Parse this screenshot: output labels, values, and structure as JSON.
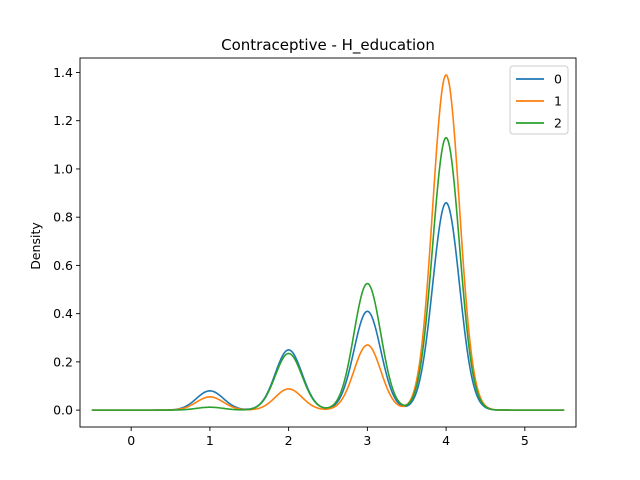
{
  "chart_data": {
    "type": "line",
    "title": "Contraceptive - H_education",
    "xlabel": "",
    "ylabel": "Density",
    "xlim": [
      -0.65,
      5.65
    ],
    "ylim": [
      -0.07,
      1.46
    ],
    "xticks": [
      0,
      1,
      2,
      3,
      4,
      5
    ],
    "yticks": [
      0.0,
      0.2,
      0.4,
      0.6,
      0.8,
      1.0,
      1.2,
      1.4
    ],
    "ytick_labels": [
      "0.0",
      "0.2",
      "0.4",
      "0.6",
      "0.8",
      "1.0",
      "1.2",
      "1.4"
    ],
    "grid": false,
    "legend_position": "top-right",
    "x_range": [
      -0.5,
      5.5
    ],
    "bandwidth": 0.17,
    "peak_locations": [
      1,
      2,
      3,
      4
    ],
    "series": [
      {
        "name": "0",
        "color": "#1f77b4",
        "peaks": [
          0.08,
          0.25,
          0.41,
          0.86
        ]
      },
      {
        "name": "1",
        "color": "#ff7f0e",
        "peaks": [
          0.055,
          0.088,
          0.27,
          1.39
        ]
      },
      {
        "name": "2",
        "color": "#2ca02c",
        "peaks": [
          0.012,
          0.235,
          0.525,
          1.13
        ]
      }
    ]
  }
}
